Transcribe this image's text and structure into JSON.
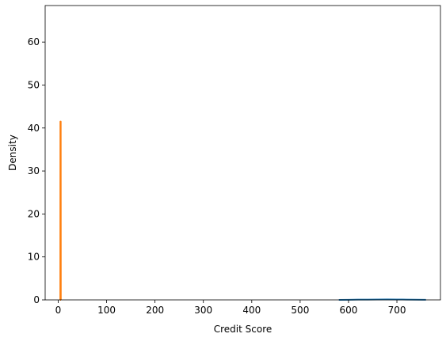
{
  "chart_data": {
    "type": "line",
    "title": "",
    "xlabel": "Credit Score",
    "ylabel": "Density",
    "xlim": [
      -27,
      790
    ],
    "ylim": [
      0,
      68.5
    ],
    "xticks": [
      0,
      100,
      200,
      300,
      400,
      500,
      600,
      700
    ],
    "yticks": [
      0,
      10,
      20,
      30,
      40,
      50,
      60
    ],
    "grid": false,
    "legend": "none",
    "series": [
      {
        "color": "#1f77b4",
        "points": [
          [
            580,
            0.0
          ],
          [
            600,
            0.03
          ],
          [
            620,
            0.06
          ],
          [
            640,
            0.08
          ],
          [
            660,
            0.1
          ],
          [
            680,
            0.11
          ],
          [
            700,
            0.1
          ],
          [
            720,
            0.08
          ],
          [
            740,
            0.05
          ],
          [
            760,
            0.02
          ]
        ]
      },
      {
        "color": "#ff7f0e",
        "points": [
          [
            4.0,
            0.0
          ],
          [
            4.3,
            0.0
          ],
          [
            4.5,
            41.5
          ],
          [
            5.2,
            41.5
          ],
          [
            5.4,
            0.0
          ],
          [
            5.7,
            0.0
          ]
        ]
      }
    ]
  }
}
